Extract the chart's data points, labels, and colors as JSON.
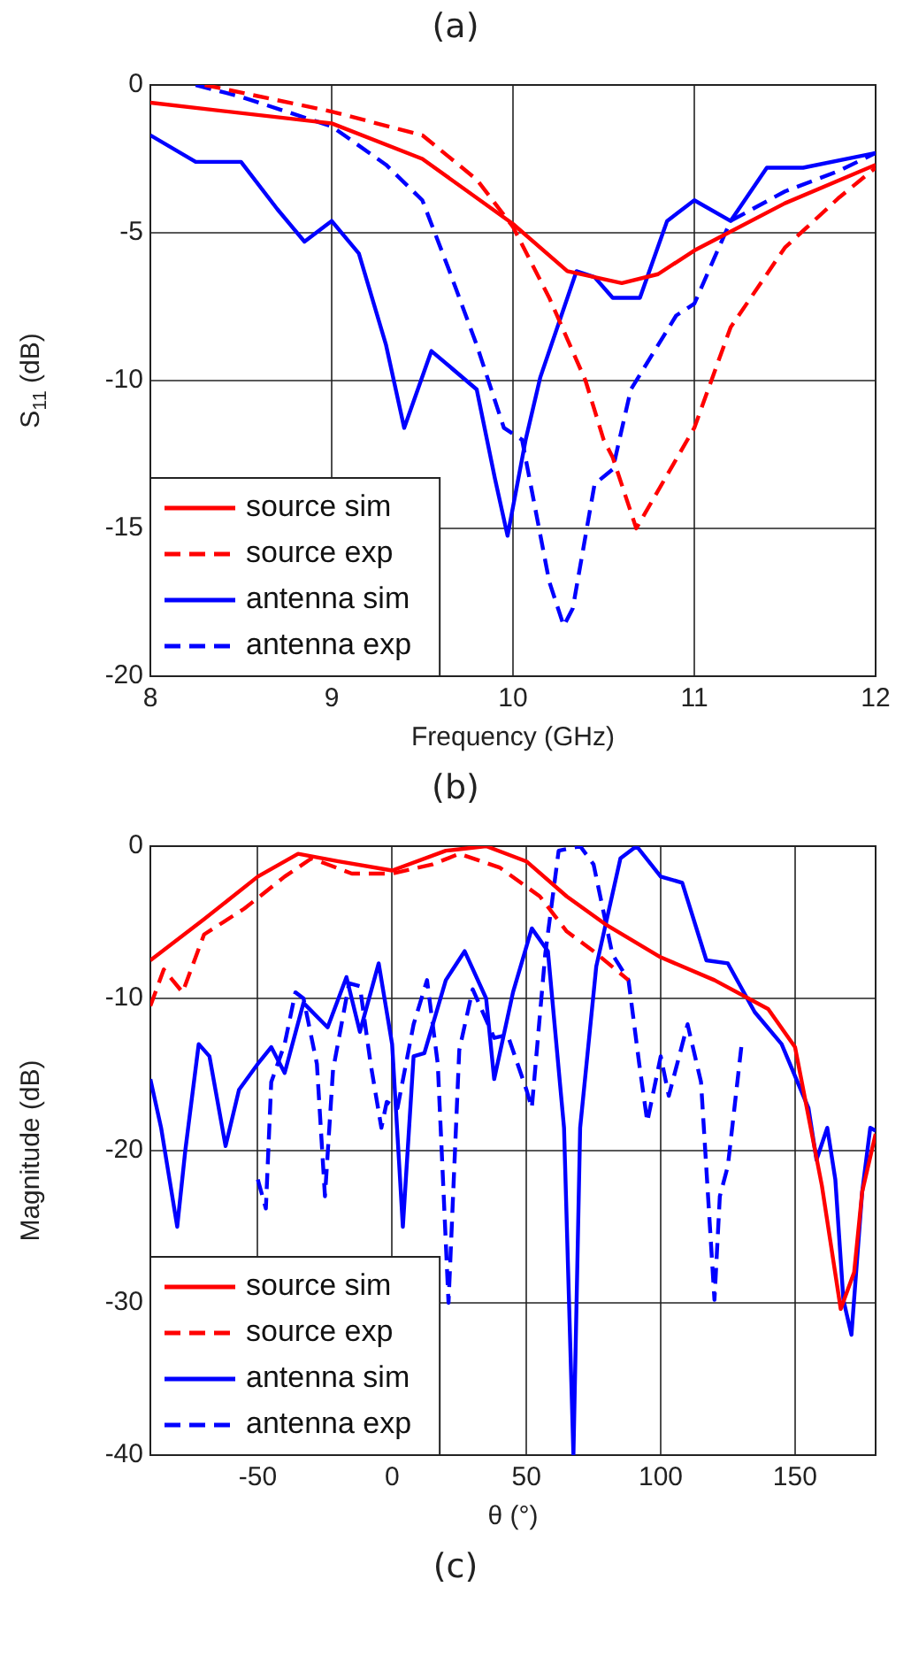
{
  "chart_data": [
    {
      "type": "line",
      "xlabel": "Frequency (GHz)",
      "ylabel": "S$_{11}$ (dB)",
      "xlim": [
        8,
        12
      ],
      "ylim": [
        -20,
        0
      ],
      "xticks": [
        8,
        9,
        10,
        11,
        12
      ],
      "yticks": [
        0,
        -5,
        -10,
        -15,
        -20
      ],
      "grid": true,
      "legend": "bottom left",
      "annotations": [
        "(a)",
        "(b)"
      ],
      "series": [
        {
          "name": "source sim",
          "color": "#ff0000",
          "line_style": "solid",
          "x": [
            8,
            9,
            9.5,
            10,
            10.3,
            10.6,
            10.8,
            11,
            11.5,
            12
          ],
          "values": [
            -0.6,
            -1.3,
            -2.5,
            -4.7,
            -6.3,
            -6.7,
            -6.4,
            -5.6,
            -4.0,
            -2.7
          ]
        },
        {
          "name": "source exp",
          "color": "#ff0000",
          "line_style": "dashed",
          "x": [
            8.3,
            9,
            9.5,
            9.8,
            10,
            10.2,
            10.4,
            10.5,
            10.55,
            10.68,
            11,
            11.2,
            11.5,
            11.8,
            12
          ],
          "values": [
            0,
            -0.9,
            -1.7,
            -3.2,
            -4.8,
            -7.2,
            -10,
            -12,
            -12.6,
            -15,
            -11.6,
            -8.2,
            -5.5,
            -3.8,
            -2.8
          ]
        },
        {
          "name": "antenna sim",
          "color": "#0000ff",
          "line_style": "solid",
          "x": [
            8,
            8.25,
            8.5,
            8.7,
            8.85,
            9,
            9.15,
            9.3,
            9.4,
            9.55,
            9.8,
            9.9,
            9.97,
            10.07,
            10.15,
            10.35,
            10.45,
            10.55,
            10.7,
            10.85,
            11,
            11.2,
            11.4,
            11.6,
            12
          ],
          "values": [
            -1.7,
            -2.6,
            -2.6,
            -4.2,
            -5.3,
            -4.6,
            -5.7,
            -8.8,
            -11.6,
            -9,
            -10.3,
            -13.3,
            -15.25,
            -12,
            -9.9,
            -6.3,
            -6.5,
            -7.2,
            -7.2,
            -4.6,
            -3.9,
            -4.6,
            -2.8,
            -2.8,
            -2.3
          ]
        },
        {
          "name": "antenna exp",
          "color": "#0000ff",
          "line_style": "dashed",
          "x": [
            8.25,
            8.5,
            9,
            9.3,
            9.5,
            9.65,
            9.8,
            9.95,
            10.05,
            10.2,
            10.28,
            10.33,
            10.45,
            10.55,
            10.65,
            10.9,
            11,
            11.2,
            11.5,
            11.8,
            12
          ],
          "values": [
            0,
            -0.4,
            -1.4,
            -2.7,
            -3.9,
            -6.3,
            -8.8,
            -11.6,
            -12,
            -16.8,
            -18.3,
            -17.7,
            -13.5,
            -13,
            -10.3,
            -7.8,
            -7.4,
            -4.6,
            -3.6,
            -2.9,
            -2.3
          ]
        }
      ]
    },
    {
      "type": "line",
      "xlabel": "θ (°)",
      "ylabel": "Magnitude (dB)",
      "xlim": [
        -90,
        180
      ],
      "ylim": [
        -40,
        0
      ],
      "xticks": [
        -50,
        0,
        50,
        100,
        150
      ],
      "yticks": [
        0,
        -10,
        -20,
        -30,
        -40
      ],
      "grid": true,
      "legend": "bottom left",
      "annotations": [
        "(c)"
      ],
      "series": [
        {
          "name": "source sim",
          "color": "#ff0000",
          "line_style": "solid",
          "x": [
            -90,
            -70,
            -50,
            -35,
            -20,
            0,
            20,
            35,
            50,
            65,
            80,
            100,
            120,
            140,
            150,
            160,
            167,
            172,
            175,
            180
          ],
          "values": [
            -7.5,
            -4.8,
            -2,
            -0.5,
            -1,
            -1.6,
            -0.3,
            0,
            -1,
            -3.3,
            -5.2,
            -7.3,
            -8.8,
            -10.7,
            -13.2,
            -22.3,
            -30.4,
            -28,
            -22.7,
            -18.9
          ]
        },
        {
          "name": "source exp",
          "color": "#ff0000",
          "line_style": "dashed",
          "x": [
            -90,
            -85,
            -78,
            -70,
            -55,
            -40,
            -30,
            -15,
            0,
            15,
            25,
            40,
            55,
            65,
            75,
            88
          ],
          "values": [
            -10.5,
            -8.1,
            -9.6,
            -5.8,
            -4.1,
            -2,
            -0.8,
            -1.8,
            -1.8,
            -1.2,
            -0.5,
            -1.4,
            -3.3,
            -5.6,
            -6.9,
            -8.8
          ]
        },
        {
          "name": "antenna sim",
          "color": "#0000ff",
          "line_style": "solid",
          "x": [
            -90,
            -86,
            -80,
            -77,
            -72,
            -68,
            -62,
            -57,
            -50,
            -45,
            -40,
            -33,
            -24,
            -17,
            -12,
            -5,
            0,
            4,
            8,
            12,
            20,
            27,
            35,
            38,
            45,
            52,
            58,
            64,
            67.5,
            70,
            76,
            85,
            91,
            100,
            108,
            117,
            125,
            135,
            145,
            155,
            158,
            162,
            165,
            168,
            171,
            175,
            178,
            180
          ],
          "values": [
            -15.3,
            -18.5,
            -25,
            -20,
            -13,
            -13.8,
            -19.7,
            -16,
            -14.3,
            -13.2,
            -14.9,
            -10.3,
            -11.9,
            -8.6,
            -12.2,
            -7.7,
            -13,
            -25,
            -13.8,
            -13.6,
            -8.8,
            -6.9,
            -10,
            -15.3,
            -9.6,
            -5.4,
            -6.9,
            -18.5,
            -40,
            -18.5,
            -7.9,
            -0.8,
            0,
            -2,
            -2.4,
            -7.5,
            -7.7,
            -10.9,
            -13,
            -17.2,
            -20.6,
            -18.5,
            -21.9,
            -29.8,
            -32.1,
            -22.7,
            -18.5,
            -18.7
          ]
        },
        {
          "name": "antenna exp",
          "color": "#0000ff",
          "line_style": "dashed",
          "x": [
            -50,
            -47,
            -45,
            -40,
            -36,
            -33,
            -28,
            -25,
            -22,
            -16,
            -12,
            -8,
            -4,
            -2,
            2,
            8,
            13,
            17,
            21,
            25,
            30,
            38,
            43,
            50,
            52,
            57,
            62,
            70,
            75,
            82,
            88,
            92,
            95,
            100,
            103,
            110,
            115,
            120,
            122,
            125,
            130
          ],
          "values": [
            -21.9,
            -23.8,
            -15.5,
            -13,
            -9.6,
            -10,
            -14.3,
            -23,
            -14.7,
            -9,
            -9.2,
            -14.3,
            -18.5,
            -16.8,
            -17.2,
            -11.7,
            -8.8,
            -14.3,
            -30,
            -13.4,
            -9.4,
            -12.6,
            -12.4,
            -16,
            -17.2,
            -7.1,
            -0.3,
            0,
            -1.2,
            -7.1,
            -8.8,
            -14.3,
            -18.1,
            -13.8,
            -16.4,
            -11.7,
            -15.5,
            -29.8,
            -23,
            -21,
            -13.2
          ]
        }
      ]
    }
  ]
}
